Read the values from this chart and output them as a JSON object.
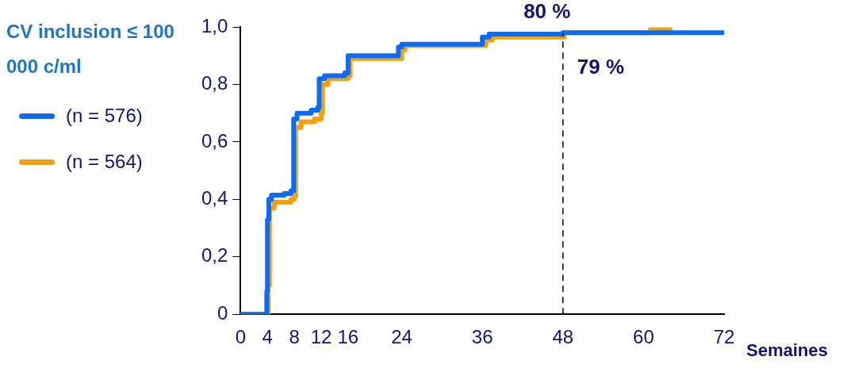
{
  "chart_data": {
    "type": "step",
    "legend_title": "CV inclusion ≤ 100 000 c/ml",
    "xlabel": "Semaines",
    "xlim": [
      0,
      72
    ],
    "xticks": [
      0,
      4,
      8,
      12,
      16,
      24,
      36,
      48,
      60,
      72
    ],
    "ylim": [
      0,
      1.0
    ],
    "yticks": [
      0,
      {
        "value": 0.2,
        "label": "0,2"
      },
      {
        "value": 0.4,
        "label": "0,4"
      },
      {
        "value": 0.6,
        "label": "0,6"
      },
      {
        "value": 0.8,
        "label": "0,8"
      },
      {
        "value": 1.0,
        "label": "1,0"
      }
    ],
    "grid": false,
    "legend": "left",
    "marker": "none",
    "line_style": "solid",
    "series": [
      {
        "name": "(n = 576)",
        "color": "#0a6cf5",
        "x": [
          0,
          3.9,
          4.0,
          4.2,
          4.6,
          6.5,
          7.5,
          7.9,
          8.4,
          10.5,
          11.5,
          11.7,
          12.5,
          15.5,
          16,
          23.5,
          24,
          36,
          37,
          48,
          72
        ],
        "values": [
          0,
          0.08,
          0.33,
          0.4,
          0.415,
          0.42,
          0.43,
          0.68,
          0.7,
          0.71,
          0.72,
          0.82,
          0.83,
          0.84,
          0.9,
          0.93,
          0.94,
          0.965,
          0.975,
          0.98,
          0.98
        ]
      },
      {
        "name": "(n = 564)",
        "color": "#f5a00a",
        "x": [
          0,
          4.1,
          4.3,
          5,
          7.5,
          8,
          8.2,
          9,
          11,
          12,
          12.2,
          13,
          16,
          16.3,
          24,
          24.5,
          36.5,
          37.5,
          48.2,
          61,
          64
        ],
        "values": [
          0,
          0.1,
          0.37,
          0.39,
          0.4,
          0.41,
          0.65,
          0.67,
          0.68,
          0.7,
          0.8,
          0.82,
          0.83,
          0.89,
          0.92,
          0.935,
          0.955,
          0.965,
          0.98,
          0.99,
          0.99
        ]
      }
    ],
    "ref_lines": [
      {
        "axis": "x",
        "value": 48,
        "line_style": "dashed",
        "color": "#000000"
      }
    ],
    "annotations": [
      "80 %",
      "79 %"
    ]
  }
}
